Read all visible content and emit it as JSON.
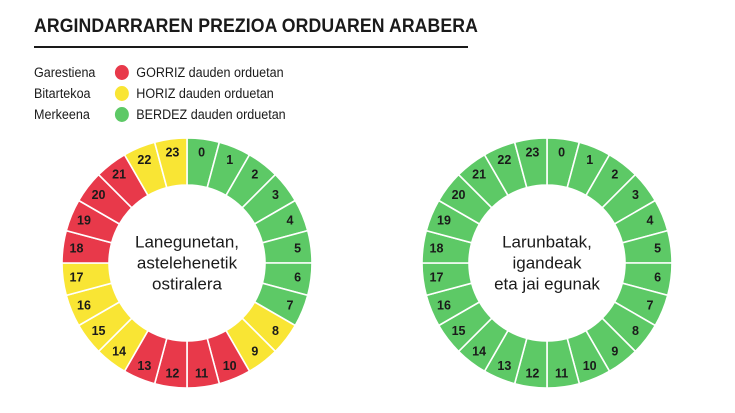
{
  "header": {
    "title": "ARGINDARRAREN PREZIOA ORDUAREN ARABERA"
  },
  "legend": {
    "items": [
      {
        "name": "Garestiena",
        "description": "GORRIZ dauden orduetan",
        "color": "#e8394a"
      },
      {
        "name": "Bitartekoa",
        "description": "HORIZ dauden orduetan",
        "color": "#f9e534"
      },
      {
        "name": "Merkeena",
        "description": "BERDEZ dauden orduetan",
        "color": "#5dc966"
      }
    ]
  },
  "chart_data": [
    {
      "type": "pie",
      "subtype": "donut",
      "title": "Lanegunetan, astelehenetik ostiralera",
      "center_lines": [
        "Lanegunetan,",
        "astelehenetik",
        "ostiralera"
      ],
      "categories": [
        "0",
        "1",
        "2",
        "3",
        "4",
        "5",
        "6",
        "7",
        "8",
        "9",
        "10",
        "11",
        "12",
        "13",
        "14",
        "15",
        "16",
        "17",
        "18",
        "19",
        "20",
        "21",
        "22",
        "23"
      ],
      "values": [
        1,
        1,
        1,
        1,
        1,
        1,
        1,
        1,
        1,
        1,
        1,
        1,
        1,
        1,
        1,
        1,
        1,
        1,
        1,
        1,
        1,
        1,
        1,
        1
      ],
      "levels": [
        "green",
        "green",
        "green",
        "green",
        "green",
        "green",
        "green",
        "green",
        "yellow",
        "yellow",
        "red",
        "red",
        "red",
        "red",
        "yellow",
        "yellow",
        "yellow",
        "yellow",
        "red",
        "red",
        "red",
        "red",
        "yellow",
        "yellow"
      ]
    },
    {
      "type": "pie",
      "subtype": "donut",
      "title": "Larunbatak, igandeak eta jai egunak",
      "center_lines": [
        "Larunbatak,",
        "igandeak",
        "eta jai egunak"
      ],
      "categories": [
        "0",
        "1",
        "2",
        "3",
        "4",
        "5",
        "6",
        "7",
        "8",
        "9",
        "10",
        "11",
        "12",
        "13",
        "14",
        "15",
        "16",
        "17",
        "18",
        "19",
        "20",
        "21",
        "22",
        "23"
      ],
      "values": [
        1,
        1,
        1,
        1,
        1,
        1,
        1,
        1,
        1,
        1,
        1,
        1,
        1,
        1,
        1,
        1,
        1,
        1,
        1,
        1,
        1,
        1,
        1,
        1
      ],
      "levels": [
        "green",
        "green",
        "green",
        "green",
        "green",
        "green",
        "green",
        "green",
        "green",
        "green",
        "green",
        "green",
        "green",
        "green",
        "green",
        "green",
        "green",
        "green",
        "green",
        "green",
        "green",
        "green",
        "green",
        "green"
      ]
    }
  ],
  "colors": {
    "red": "#e8394a",
    "yellow": "#f9e534",
    "green": "#5dc966"
  }
}
